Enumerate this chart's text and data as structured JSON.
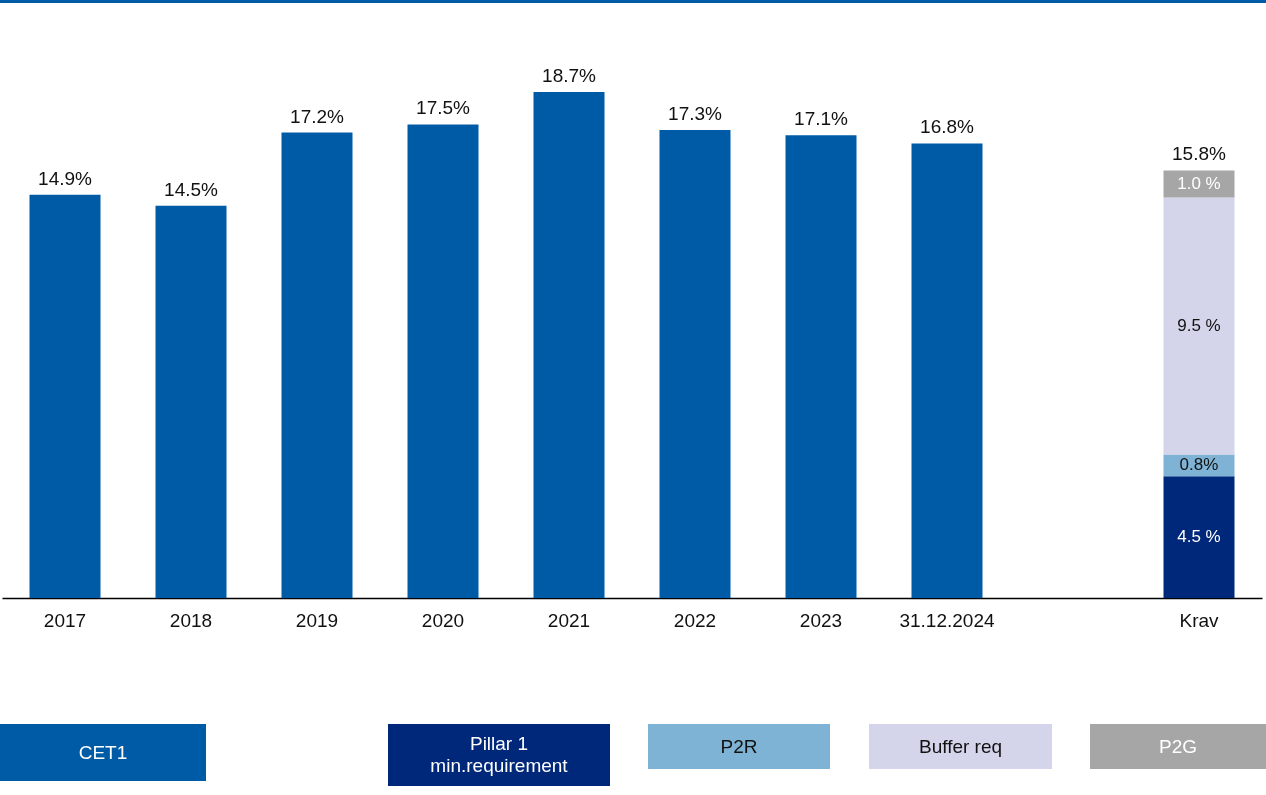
{
  "chart_data": {
    "type": "bar",
    "categories": [
      "2017",
      "2018",
      "2019",
      "2020",
      "2021",
      "2022",
      "2023",
      "31.12.2024",
      null,
      "Krav"
    ],
    "series": [
      {
        "name": "CET1",
        "color": "#005ba6",
        "values": [
          14.9,
          14.5,
          17.2,
          17.5,
          18.7,
          17.3,
          17.1,
          16.8,
          null,
          null
        ],
        "value_labels": [
          "14.9%",
          "14.5%",
          "17.2%",
          "17.5%",
          "18.7%",
          "17.3%",
          "17.1%",
          "16.8%",
          null,
          null
        ]
      },
      {
        "name": "Pillar 1 min.requirement",
        "color": "#00287a",
        "values": [
          null,
          null,
          null,
          null,
          null,
          null,
          null,
          null,
          null,
          4.5
        ],
        "value_labels": [
          null,
          null,
          null,
          null,
          null,
          null,
          null,
          null,
          null,
          "4.5 %"
        ]
      },
      {
        "name": "P2R",
        "color": "#7fb3d5",
        "values": [
          null,
          null,
          null,
          null,
          null,
          null,
          null,
          null,
          null,
          0.8
        ],
        "value_labels": [
          null,
          null,
          null,
          null,
          null,
          null,
          null,
          null,
          null,
          "0.8%"
        ]
      },
      {
        "name": "Buffer req",
        "color": "#d4d4ea",
        "values": [
          null,
          null,
          null,
          null,
          null,
          null,
          null,
          null,
          null,
          9.5
        ],
        "value_labels": [
          null,
          null,
          null,
          null,
          null,
          null,
          null,
          null,
          null,
          "9.5 %"
        ]
      },
      {
        "name": "P2G",
        "color": "#a6a6a6",
        "values": [
          null,
          null,
          null,
          null,
          null,
          null,
          null,
          null,
          null,
          1.0
        ],
        "value_labels": [
          null,
          null,
          null,
          null,
          null,
          null,
          null,
          null,
          null,
          "1.0 %"
        ]
      }
    ],
    "stacked": true,
    "totals": [
      null,
      null,
      null,
      null,
      null,
      null,
      null,
      null,
      null,
      "15.8%"
    ],
    "legend": "bottom",
    "tick_labels": "x"
  }
}
